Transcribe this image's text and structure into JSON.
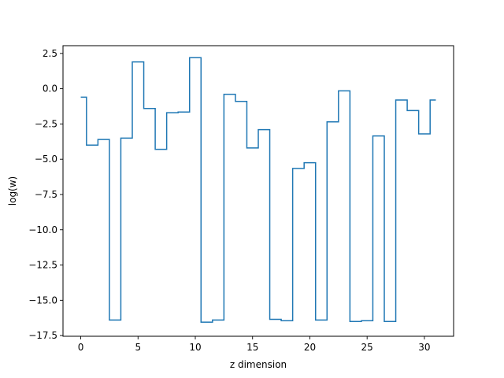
{
  "chart_data": {
    "type": "line",
    "drawstyle": "steps-mid",
    "xlabel": "z dimension",
    "ylabel": "log(w)",
    "xlim": [
      -1.55,
      32.55
    ],
    "ylim": [
      -17.55,
      3.05
    ],
    "xticks": [
      0,
      5,
      10,
      15,
      20,
      25,
      30
    ],
    "yticks": [
      2.5,
      0.0,
      -2.5,
      -5.0,
      -7.5,
      -10.0,
      -12.5,
      -15.0,
      -17.5
    ],
    "xtick_labels": [
      "0",
      "5",
      "10",
      "15",
      "20",
      "25",
      "30"
    ],
    "ytick_labels": [
      "2.5",
      "0.0",
      "−2.5",
      "−5.0",
      "−7.5",
      "−10.0",
      "−12.5",
      "−15.0",
      "−17.5"
    ],
    "grid": false,
    "line_color": "#1f77b4",
    "series": [
      {
        "x": [
          0,
          1,
          2,
          3,
          4,
          5,
          6,
          7,
          8,
          9,
          10,
          11,
          12,
          13,
          14,
          15,
          16,
          17,
          18,
          19,
          20,
          21,
          22,
          23,
          24,
          25,
          26,
          27,
          28,
          29,
          30,
          31
        ],
        "values": [
          -0.6,
          -4.0,
          -3.6,
          -16.4,
          -3.5,
          1.9,
          -1.4,
          -4.3,
          -1.7,
          -1.65,
          2.2,
          -16.55,
          -16.4,
          -0.4,
          -0.9,
          -4.2,
          -2.9,
          -16.35,
          -16.45,
          -5.65,
          -5.25,
          -16.4,
          -2.35,
          -0.15,
          -16.5,
          -16.45,
          -3.35,
          -16.5,
          -0.8,
          -1.55,
          -3.2,
          -0.8
        ]
      }
    ]
  }
}
